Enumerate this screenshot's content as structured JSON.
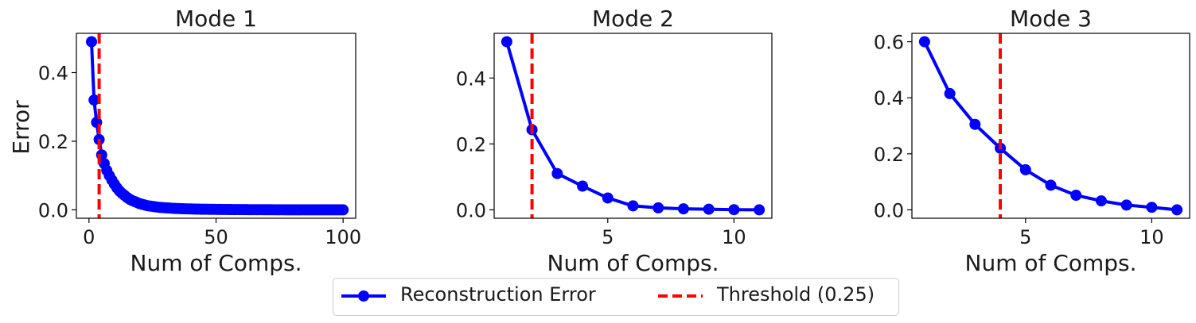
{
  "chart_data": [
    {
      "type": "line",
      "title": "Mode 1",
      "xlabel": "Num of Comps.",
      "ylabel": "Error",
      "xlim": [
        -4.95,
        104.95
      ],
      "ylim": [
        -0.0245,
        0.5145
      ],
      "xticks": [
        0,
        50,
        100
      ],
      "yticks": [
        0.0,
        0.2,
        0.4
      ],
      "threshold_x": 4,
      "series": [
        {
          "name": "Reconstruction Error",
          "x": [
            1,
            2,
            3,
            4,
            5,
            6,
            7,
            8,
            9,
            10,
            11,
            12,
            13,
            14,
            15,
            16,
            17,
            18,
            19,
            20,
            21,
            22,
            23,
            24,
            25,
            26,
            27,
            28,
            29,
            30,
            31,
            32,
            33,
            34,
            35,
            36,
            37,
            38,
            39,
            40,
            41,
            42,
            43,
            44,
            45,
            46,
            47,
            48,
            49,
            50,
            51,
            52,
            53,
            54,
            55,
            56,
            57,
            58,
            59,
            60,
            61,
            62,
            63,
            64,
            65,
            66,
            67,
            68,
            69,
            70,
            71,
            72,
            73,
            74,
            75,
            76,
            77,
            78,
            79,
            80,
            81,
            82,
            83,
            84,
            85,
            86,
            87,
            88,
            89,
            90,
            91,
            92,
            93,
            94,
            95,
            96,
            97,
            98,
            99,
            100
          ],
          "values": [
            0.49,
            0.32,
            0.255,
            0.205,
            0.16,
            0.135,
            0.115,
            0.1,
            0.087,
            0.075,
            0.064,
            0.055,
            0.048,
            0.042,
            0.036,
            0.031,
            0.027,
            0.024,
            0.021,
            0.018,
            0.016,
            0.014,
            0.012,
            0.011,
            0.01,
            0.009,
            0.008,
            0.007,
            0.0065,
            0.006,
            0.0055,
            0.005,
            0.0045,
            0.004,
            0.0038,
            0.0035,
            0.0032,
            0.003,
            0.0028,
            0.0026,
            0.0024,
            0.0022,
            0.002,
            0.0019,
            0.0018,
            0.0017,
            0.0016,
            0.0015,
            0.0014,
            0.0013,
            0.0012,
            0.0011,
            0.001,
            0.001,
            0.0009,
            0.0009,
            0.0008,
            0.0008,
            0.0007,
            0.0007,
            0.0006,
            0.0006,
            0.0005,
            0.0005,
            0.0005,
            0.0004,
            0.0004,
            0.0004,
            0.0003,
            0.0003,
            0.0003,
            0.0003,
            0.0002,
            0.0002,
            0.0002,
            0.0002,
            0.0002,
            0.0001,
            0.0001,
            0.0001,
            0.0001,
            0.0001,
            0.0001,
            0.0001,
            0.0001,
            0,
            0,
            0,
            0,
            0,
            0,
            0,
            0,
            0,
            0,
            0,
            0,
            0,
            0,
            0
          ]
        }
      ]
    },
    {
      "type": "line",
      "title": "Mode 2",
      "xlabel": "Num of Comps.",
      "ylabel": "",
      "xlim": [
        0.5,
        11.5
      ],
      "ylim": [
        -0.0255,
        0.5355
      ],
      "xticks": [
        5,
        10
      ],
      "yticks": [
        0.0,
        0.2,
        0.4
      ],
      "threshold_x": 2,
      "series": [
        {
          "name": "Reconstruction Error",
          "x": [
            1,
            2,
            3,
            4,
            5,
            6,
            7,
            8,
            9,
            10,
            11
          ],
          "values": [
            0.51,
            0.243,
            0.11,
            0.072,
            0.036,
            0.012,
            0.006,
            0.003,
            0.002,
            0.0005,
            0.0
          ]
        }
      ]
    },
    {
      "type": "line",
      "title": "Mode 3",
      "xlabel": "Num of Comps.",
      "ylabel": "",
      "xlim": [
        0.5,
        11.5
      ],
      "ylim": [
        -0.03,
        0.63
      ],
      "xticks": [
        5,
        10
      ],
      "yticks": [
        0.0,
        0.2,
        0.4,
        0.6
      ],
      "threshold_x": 4,
      "series": [
        {
          "name": "Reconstruction Error",
          "x": [
            1,
            2,
            3,
            4,
            5,
            6,
            7,
            8,
            9,
            10,
            11
          ],
          "values": [
            0.6,
            0.415,
            0.305,
            0.22,
            0.143,
            0.088,
            0.052,
            0.032,
            0.017,
            0.009,
            0.0
          ]
        }
      ]
    }
  ],
  "legend": {
    "placement": "bottom-center",
    "items": [
      {
        "label": "Reconstruction Error",
        "kind": "line-marker",
        "color": "#0000ff"
      },
      {
        "label": "Threshold (0.25)",
        "kind": "dashed",
        "color": "#ff0000"
      }
    ]
  },
  "colors": {
    "series": "#0000ff",
    "threshold": "#ff0000",
    "axes": "#000000",
    "text": "#1a1a1a"
  }
}
